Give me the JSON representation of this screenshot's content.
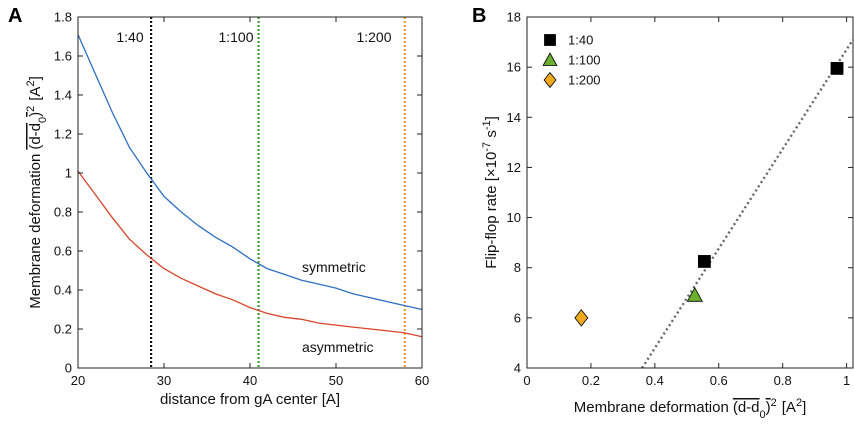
{
  "chart_data": [
    {
      "panel": "A",
      "type": "line",
      "xlabel": "distance from gA center [A]",
      "ylabel_prefix": "Membrane deformation",
      "ylabel_formula": "(d-d",
      "ylabel_sub": "0",
      "ylabel_paren": ")",
      "ylabel_pow": "2",
      "ylabel_unit": "[A",
      "ylabel_unit_pow": "2",
      "ylabel_unit_close": "]",
      "xlim": [
        20,
        60
      ],
      "ylim": [
        0,
        1.8
      ],
      "xticks": [
        "20",
        "30",
        "40",
        "50",
        "60"
      ],
      "yticks": [
        "0",
        "0.2",
        "0.4",
        "0.6",
        "0.8",
        "1",
        "1.2",
        "1.4",
        "1.6",
        "1.8"
      ],
      "grid": false,
      "series": [
        {
          "name": "symmetric",
          "color": "#2f6fc2",
          "x": [
            20,
            22,
            24,
            26,
            28,
            30,
            32,
            34,
            36,
            38,
            40,
            42,
            44,
            46,
            48,
            50,
            52,
            54,
            56,
            58,
            60
          ],
          "y": [
            1.71,
            1.51,
            1.31,
            1.13,
            1.0,
            0.88,
            0.8,
            0.73,
            0.67,
            0.62,
            0.56,
            0.51,
            0.48,
            0.45,
            0.43,
            0.41,
            0.38,
            0.36,
            0.34,
            0.32,
            0.3
          ]
        },
        {
          "name": "asymmetric",
          "color": "#d9452b",
          "x": [
            20,
            22,
            24,
            26,
            28,
            30,
            32,
            34,
            36,
            38,
            40,
            42,
            44,
            46,
            48,
            50,
            52,
            54,
            56,
            58,
            60
          ],
          "y": [
            1.01,
            0.89,
            0.77,
            0.66,
            0.58,
            0.51,
            0.46,
            0.42,
            0.38,
            0.35,
            0.31,
            0.28,
            0.26,
            0.25,
            0.23,
            0.22,
            0.21,
            0.2,
            0.19,
            0.18,
            0.16
          ]
        }
      ],
      "vlines": [
        {
          "label": "1:40",
          "x": 28.5,
          "color": "#111111"
        },
        {
          "label": "1:100",
          "x": 41,
          "color": "#3aa12f"
        },
        {
          "label": "1:200",
          "x": 58,
          "color": "#f0a020"
        }
      ]
    },
    {
      "panel": "B",
      "type": "scatter",
      "xlabel_prefix": "Membrane deformation",
      "ylabel_prefix": "Flip-flop rate [×10",
      "ylabel_exp": "-7",
      "ylabel_unit": " s",
      "ylabel_unit_exp": "-1",
      "ylabel_close": "]",
      "xlim": [
        0,
        1.02
      ],
      "ylim": [
        4,
        18
      ],
      "xticks": [
        "0",
        "0.2",
        "0.4",
        "0.6",
        "0.8",
        "1"
      ],
      "yticks": [
        "4",
        "6",
        "8",
        "10",
        "12",
        "14",
        "16",
        "18"
      ],
      "grid": false,
      "legend_position": "top-left",
      "points": [
        {
          "name": "1:40",
          "marker": "square",
          "color": "#000000",
          "x": [
            0.555,
            0.97
          ],
          "y": [
            8.25,
            15.95
          ]
        },
        {
          "name": "1:100",
          "marker": "triangle",
          "color": "#6ab02e",
          "x": [
            0.525
          ],
          "y": [
            6.9
          ]
        },
        {
          "name": "1:200",
          "marker": "diamond",
          "color": "#f0a81e",
          "x": [
            0.17
          ],
          "y": [
            6.0
          ]
        }
      ],
      "fit_line": {
        "x": [
          0.36,
          1.02
        ],
        "y": [
          4.0,
          17.1
        ],
        "color": "#666666"
      }
    }
  ]
}
